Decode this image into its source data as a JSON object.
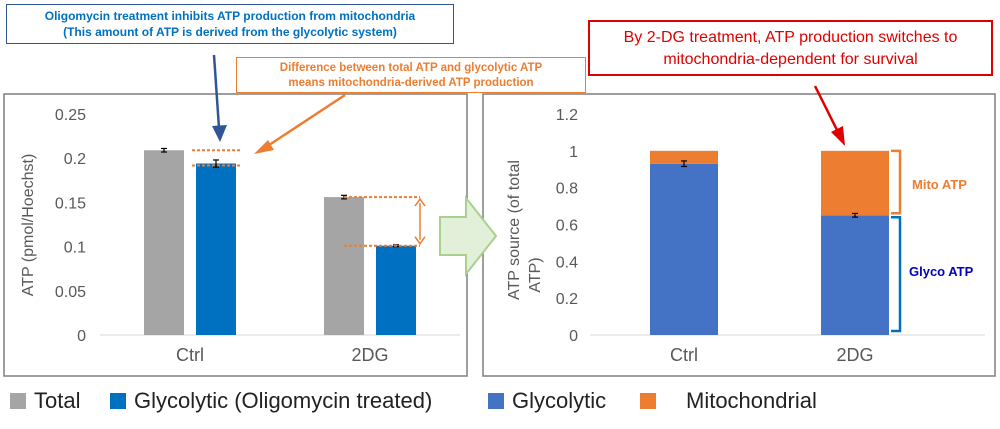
{
  "callouts": {
    "oligomycin": [
      "Oligomycin treatment inhibits ATP production from mitochondria",
      "(This amount of ATP is derived from the glycolytic system)"
    ],
    "difference": [
      "Difference between total ATP and glycolytic ATP",
      "means mitochondria-derived ATP production"
    ],
    "switch": [
      "By 2-DG treatment, ATP production switches to",
      "mitochondria-dependent for survival"
    ]
  },
  "colors": {
    "total": "#a5a5a5",
    "glycolytic_treated": "#0070c0",
    "glycolytic": "#4472c4",
    "mitochondrial": "#ed7d31",
    "arrow_blue": "#2f5597",
    "arrow_red": "#e00000",
    "big_arrow_fill": "#e2efd9",
    "big_arrow_stroke": "#a9d18e"
  },
  "chart_data": [
    {
      "type": "bar",
      "categories": [
        "Ctrl",
        "2DG"
      ],
      "ylabel": "ATP (pmol/Hoechst)",
      "ylim": [
        0,
        0.25
      ],
      "yticks": [
        "0",
        "0.05",
        "0.1",
        "0.15",
        "0.2",
        "0.25"
      ],
      "grid": false,
      "series": [
        {
          "name": "Total",
          "values": [
            0.209,
            0.156
          ],
          "errors": [
            0.002,
            0.002
          ]
        },
        {
          "name": "Glycolytic (Oligomycin treated)",
          "values": [
            0.194,
            0.101
          ],
          "errors": [
            0.004,
            0.001
          ]
        }
      ],
      "legend": "bottom"
    },
    {
      "type": "bar",
      "stacked": true,
      "categories": [
        "Ctrl",
        "2DG"
      ],
      "ylabel": "ATP source (of total ATP)",
      "ylim": [
        0,
        1.2
      ],
      "yticks": [
        "0",
        "0.2",
        "0.4",
        "0.6",
        "0.8",
        "1",
        "1.2"
      ],
      "grid": false,
      "series": [
        {
          "name": "Glycolytic",
          "values": [
            0.93,
            0.65
          ],
          "errors": [
            0.015,
            0.01
          ]
        },
        {
          "name": "Mitochondrial",
          "values": [
            0.07,
            0.35
          ]
        }
      ],
      "annotations": [
        "Mito ATP",
        "Glyco ATP"
      ],
      "legend": "bottom"
    }
  ]
}
